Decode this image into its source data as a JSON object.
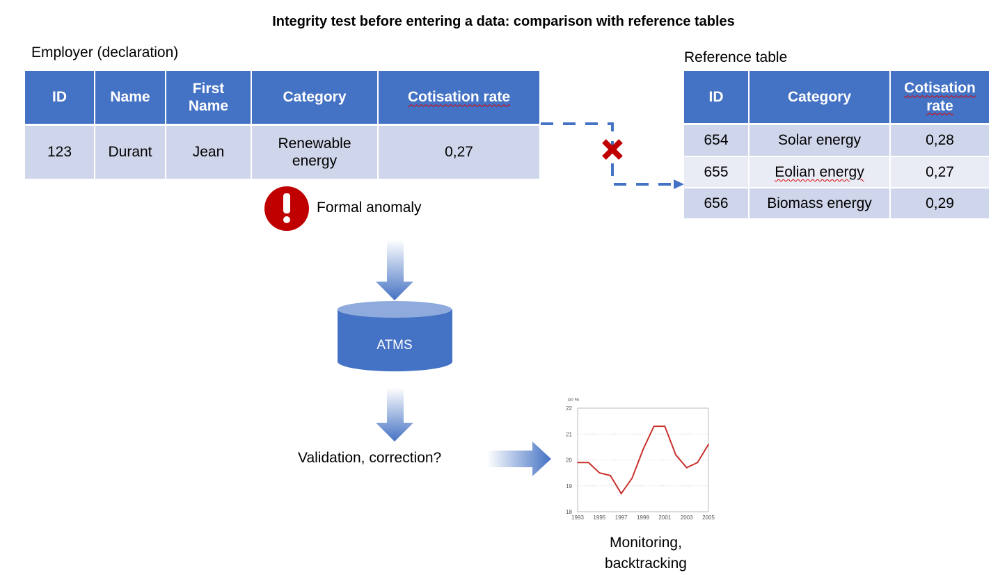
{
  "title": "Integrity test before entering a data: comparison with reference tables",
  "employer": {
    "label": "Employer (declaration)",
    "headers": [
      "ID",
      "Name",
      "First Name",
      "Category",
      "Cotisation rate"
    ],
    "row": [
      "123",
      "Durant",
      "Jean",
      "Renewable energy",
      "0,27"
    ]
  },
  "reference": {
    "label": "Reference table",
    "headers": [
      "ID",
      "Category",
      "Cotisation rate"
    ],
    "rows": [
      [
        "654",
        "Solar energy",
        "0,28"
      ],
      [
        "655",
        "Eolian energy",
        "0,27"
      ],
      [
        "656",
        "Biomass energy",
        "0,29"
      ]
    ]
  },
  "anomaly": {
    "label": "Formal anomaly",
    "icon": "exclamation-icon",
    "color": "#C00000"
  },
  "database": {
    "label": "ATMS",
    "color": "#4472C4"
  },
  "validation": {
    "label": "Validation, correction?"
  },
  "monitoring": {
    "line1": "Monitoring,",
    "line2": "backtracking"
  },
  "colors": {
    "header": "#4472C4",
    "row": "#CFD5EA",
    "row_alt": "#E9EBF5",
    "mismatch": "#C00000"
  },
  "chart_data": {
    "type": "line",
    "ylabel": "on %",
    "x": [
      1993,
      1994,
      1995,
      1996,
      1997,
      1998,
      1999,
      2000,
      2001,
      2002,
      2003,
      2004,
      2005
    ],
    "values": [
      19.9,
      19.9,
      19.5,
      19.4,
      18.7,
      19.3,
      20.4,
      21.3,
      21.3,
      20.2,
      19.7,
      19.9,
      20.6
    ],
    "xticks": [
      "1993",
      "1995",
      "1997",
      "1999",
      "2001",
      "2003",
      "2005"
    ],
    "yticks": [
      "18",
      "19",
      "20",
      "21",
      "22"
    ],
    "ylim": [
      18,
      22
    ],
    "grid": true,
    "line_color": "#C8302C"
  }
}
